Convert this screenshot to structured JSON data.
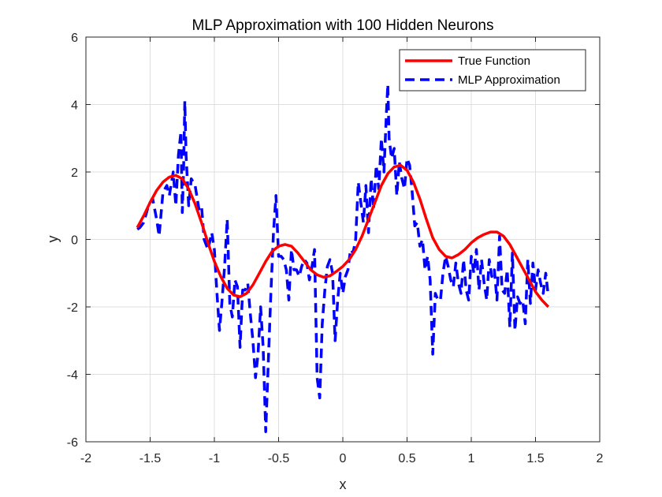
{
  "chart_data": {
    "type": "line",
    "title": "MLP Approximation with 100 Hidden Neurons",
    "xlabel": "x",
    "ylabel": "y",
    "xlim": [
      -2,
      2
    ],
    "ylim": [
      -6,
      6
    ],
    "xticks": [
      -2,
      -1.5,
      -1,
      -0.5,
      0,
      0.5,
      1,
      1.5,
      2
    ],
    "xtick_labels": [
      "-2",
      "-1.5",
      "-1",
      "-0.5",
      "0",
      "0.5",
      "1",
      "1.5",
      "2"
    ],
    "yticks": [
      -6,
      -4,
      -2,
      0,
      2,
      4,
      6
    ],
    "ytick_labels": [
      "-6",
      "-4",
      "-2",
      "0",
      "2",
      "4",
      "6"
    ],
    "grid": true,
    "legend_position": "top-right",
    "series": [
      {
        "name": "True Function",
        "color": "#ff0000",
        "style": "solid",
        "x": [
          -1.6,
          -1.55,
          -1.5,
          -1.45,
          -1.4,
          -1.35,
          -1.3,
          -1.25,
          -1.2,
          -1.15,
          -1.1,
          -1.05,
          -1.0,
          -0.95,
          -0.9,
          -0.85,
          -0.8,
          -0.75,
          -0.7,
          -0.65,
          -0.6,
          -0.55,
          -0.5,
          -0.45,
          -0.4,
          -0.35,
          -0.3,
          -0.25,
          -0.2,
          -0.15,
          -0.1,
          -0.05,
          0.0,
          0.05,
          0.1,
          0.15,
          0.2,
          0.25,
          0.3,
          0.35,
          0.4,
          0.45,
          0.5,
          0.55,
          0.6,
          0.65,
          0.7,
          0.75,
          0.8,
          0.85,
          0.9,
          0.95,
          1.0,
          1.05,
          1.1,
          1.15,
          1.2,
          1.25,
          1.3,
          1.35,
          1.4,
          1.45,
          1.5,
          1.55,
          1.6
        ],
        "y": [
          0.35,
          0.7,
          1.1,
          1.45,
          1.7,
          1.85,
          1.9,
          1.8,
          1.5,
          1.05,
          0.5,
          -0.1,
          -0.65,
          -1.1,
          -1.45,
          -1.65,
          -1.7,
          -1.6,
          -1.35,
          -1.0,
          -0.65,
          -0.35,
          -0.2,
          -0.15,
          -0.2,
          -0.4,
          -0.65,
          -0.9,
          -1.05,
          -1.12,
          -1.08,
          -0.95,
          -0.8,
          -0.6,
          -0.3,
          0.1,
          0.6,
          1.1,
          1.6,
          1.95,
          2.15,
          2.2,
          2.05,
          1.7,
          1.2,
          0.6,
          0.05,
          -0.3,
          -0.5,
          -0.55,
          -0.45,
          -0.3,
          -0.1,
          0.05,
          0.15,
          0.22,
          0.22,
          0.1,
          -0.15,
          -0.5,
          -0.85,
          -1.2,
          -1.55,
          -1.8,
          -2.0
        ]
      },
      {
        "name": "MLP Approximation",
        "color": "#0000ff",
        "style": "dashed",
        "x": [
          -1.6,
          -1.58,
          -1.55,
          -1.52,
          -1.5,
          -1.48,
          -1.45,
          -1.43,
          -1.4,
          -1.37,
          -1.35,
          -1.32,
          -1.3,
          -1.28,
          -1.26,
          -1.25,
          -1.24,
          -1.23,
          -1.22,
          -1.2,
          -1.18,
          -1.15,
          -1.12,
          -1.1,
          -1.08,
          -1.05,
          -1.02,
          -1.0,
          -0.98,
          -0.96,
          -0.94,
          -0.92,
          -0.9,
          -0.88,
          -0.86,
          -0.84,
          -0.82,
          -0.8,
          -0.78,
          -0.76,
          -0.74,
          -0.72,
          -0.7,
          -0.68,
          -0.66,
          -0.64,
          -0.62,
          -0.6,
          -0.58,
          -0.56,
          -0.54,
          -0.52,
          -0.5,
          -0.48,
          -0.46,
          -0.44,
          -0.42,
          -0.4,
          -0.38,
          -0.36,
          -0.34,
          -0.32,
          -0.3,
          -0.28,
          -0.26,
          -0.24,
          -0.22,
          -0.2,
          -0.18,
          -0.16,
          -0.14,
          -0.12,
          -0.1,
          -0.08,
          -0.06,
          -0.04,
          -0.02,
          0.0,
          0.02,
          0.04,
          0.06,
          0.08,
          0.1,
          0.12,
          0.14,
          0.16,
          0.18,
          0.2,
          0.22,
          0.24,
          0.26,
          0.28,
          0.3,
          0.32,
          0.34,
          0.35,
          0.36,
          0.38,
          0.4,
          0.42,
          0.44,
          0.46,
          0.48,
          0.5,
          0.52,
          0.54,
          0.56,
          0.58,
          0.6,
          0.62,
          0.64,
          0.66,
          0.68,
          0.7,
          0.72,
          0.74,
          0.76,
          0.78,
          0.8,
          0.82,
          0.84,
          0.86,
          0.88,
          0.9,
          0.92,
          0.94,
          0.96,
          0.98,
          1.0,
          1.02,
          1.04,
          1.06,
          1.08,
          1.1,
          1.12,
          1.14,
          1.16,
          1.18,
          1.2,
          1.22,
          1.24,
          1.26,
          1.28,
          1.3,
          1.32,
          1.34,
          1.36,
          1.38,
          1.4,
          1.42,
          1.44,
          1.46,
          1.48,
          1.5,
          1.52,
          1.54,
          1.56,
          1.58,
          1.6
        ],
        "y": [
          0.3,
          0.35,
          0.5,
          0.9,
          1.1,
          1.2,
          0.6,
          0.1,
          1.4,
          1.6,
          1.3,
          2.0,
          1.0,
          2.5,
          3.2,
          0.8,
          2.0,
          4.1,
          2.5,
          1.0,
          1.8,
          1.6,
          0.9,
          1.0,
          0.0,
          -0.3,
          0.2,
          -0.3,
          -1.6,
          -2.7,
          -1.8,
          -0.8,
          0.6,
          -1.9,
          -2.3,
          -1.2,
          -1.4,
          -3.2,
          -1.5,
          -1.5,
          -1.3,
          -2.2,
          -3.0,
          -4.1,
          -3.4,
          -2.0,
          -3.2,
          -5.7,
          -3.6,
          -1.6,
          0.2,
          1.3,
          -0.5,
          -0.5,
          -0.6,
          -0.9,
          -1.8,
          -0.3,
          -0.9,
          -0.9,
          -1.1,
          -0.8,
          -0.6,
          -0.7,
          -1.2,
          -0.8,
          -0.3,
          -4.1,
          -4.7,
          -2.5,
          -1.5,
          -0.8,
          -0.6,
          -1.0,
          -3.0,
          -1.8,
          -1.0,
          -1.6,
          -1.1,
          -0.9,
          -0.3,
          -0.4,
          0.0,
          1.7,
          1.1,
          0.5,
          1.6,
          0.2,
          1.8,
          0.9,
          2.2,
          1.5,
          3.0,
          2.0,
          3.8,
          4.6,
          3.0,
          2.4,
          2.7,
          1.3,
          2.3,
          1.8,
          1.5,
          2.4,
          2.2,
          1.4,
          0.4,
          0.5,
          -0.2,
          0.0,
          -0.9,
          -0.5,
          -1.2,
          -3.4,
          -1.6,
          -1.8,
          -1.8,
          -1.0,
          -0.5,
          -0.8,
          -1.2,
          -1.4,
          -0.7,
          -1.3,
          -1.6,
          -0.6,
          -1.5,
          -1.8,
          -0.5,
          -1.0,
          -0.3,
          -1.5,
          -0.6,
          -1.3,
          -1.8,
          -0.6,
          -1.1,
          -0.9,
          -1.8,
          0.1,
          -1.5,
          -1.6,
          -0.9,
          -2.6,
          -0.4,
          -2.7,
          -1.7,
          -1.9,
          -1.8,
          -2.5,
          -0.6,
          -1.9,
          -0.7,
          -1.5,
          -0.9,
          -1.3,
          -1.6,
          -1.0,
          -1.7
        ]
      }
    ]
  }
}
